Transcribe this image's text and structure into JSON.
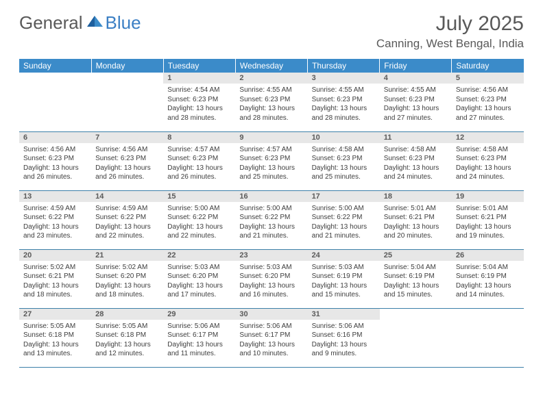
{
  "brand": {
    "general": "General",
    "blue": "Blue"
  },
  "title": "July 2025",
  "location": "Canning, West Bengal, India",
  "colors": {
    "header_bg": "#3b8bc9",
    "header_fg": "#ffffff",
    "daynum_bg": "#e7e7e7",
    "text": "#595959",
    "rule": "#3b7fa8",
    "accent": "#3b7fc4"
  },
  "weekdays": [
    "Sunday",
    "Monday",
    "Tuesday",
    "Wednesday",
    "Thursday",
    "Friday",
    "Saturday"
  ],
  "weeks": [
    [
      null,
      null,
      {
        "n": "1",
        "sr": "4:54 AM",
        "ss": "6:23 PM",
        "dl": "13 hours and 28 minutes."
      },
      {
        "n": "2",
        "sr": "4:55 AM",
        "ss": "6:23 PM",
        "dl": "13 hours and 28 minutes."
      },
      {
        "n": "3",
        "sr": "4:55 AM",
        "ss": "6:23 PM",
        "dl": "13 hours and 28 minutes."
      },
      {
        "n": "4",
        "sr": "4:55 AM",
        "ss": "6:23 PM",
        "dl": "13 hours and 27 minutes."
      },
      {
        "n": "5",
        "sr": "4:56 AM",
        "ss": "6:23 PM",
        "dl": "13 hours and 27 minutes."
      }
    ],
    [
      {
        "n": "6",
        "sr": "4:56 AM",
        "ss": "6:23 PM",
        "dl": "13 hours and 26 minutes."
      },
      {
        "n": "7",
        "sr": "4:56 AM",
        "ss": "6:23 PM",
        "dl": "13 hours and 26 minutes."
      },
      {
        "n": "8",
        "sr": "4:57 AM",
        "ss": "6:23 PM",
        "dl": "13 hours and 26 minutes."
      },
      {
        "n": "9",
        "sr": "4:57 AM",
        "ss": "6:23 PM",
        "dl": "13 hours and 25 minutes."
      },
      {
        "n": "10",
        "sr": "4:58 AM",
        "ss": "6:23 PM",
        "dl": "13 hours and 25 minutes."
      },
      {
        "n": "11",
        "sr": "4:58 AM",
        "ss": "6:23 PM",
        "dl": "13 hours and 24 minutes."
      },
      {
        "n": "12",
        "sr": "4:58 AM",
        "ss": "6:23 PM",
        "dl": "13 hours and 24 minutes."
      }
    ],
    [
      {
        "n": "13",
        "sr": "4:59 AM",
        "ss": "6:22 PM",
        "dl": "13 hours and 23 minutes."
      },
      {
        "n": "14",
        "sr": "4:59 AM",
        "ss": "6:22 PM",
        "dl": "13 hours and 22 minutes."
      },
      {
        "n": "15",
        "sr": "5:00 AM",
        "ss": "6:22 PM",
        "dl": "13 hours and 22 minutes."
      },
      {
        "n": "16",
        "sr": "5:00 AM",
        "ss": "6:22 PM",
        "dl": "13 hours and 21 minutes."
      },
      {
        "n": "17",
        "sr": "5:00 AM",
        "ss": "6:22 PM",
        "dl": "13 hours and 21 minutes."
      },
      {
        "n": "18",
        "sr": "5:01 AM",
        "ss": "6:21 PM",
        "dl": "13 hours and 20 minutes."
      },
      {
        "n": "19",
        "sr": "5:01 AM",
        "ss": "6:21 PM",
        "dl": "13 hours and 19 minutes."
      }
    ],
    [
      {
        "n": "20",
        "sr": "5:02 AM",
        "ss": "6:21 PM",
        "dl": "13 hours and 18 minutes."
      },
      {
        "n": "21",
        "sr": "5:02 AM",
        "ss": "6:20 PM",
        "dl": "13 hours and 18 minutes."
      },
      {
        "n": "22",
        "sr": "5:03 AM",
        "ss": "6:20 PM",
        "dl": "13 hours and 17 minutes."
      },
      {
        "n": "23",
        "sr": "5:03 AM",
        "ss": "6:20 PM",
        "dl": "13 hours and 16 minutes."
      },
      {
        "n": "24",
        "sr": "5:03 AM",
        "ss": "6:19 PM",
        "dl": "13 hours and 15 minutes."
      },
      {
        "n": "25",
        "sr": "5:04 AM",
        "ss": "6:19 PM",
        "dl": "13 hours and 15 minutes."
      },
      {
        "n": "26",
        "sr": "5:04 AM",
        "ss": "6:19 PM",
        "dl": "13 hours and 14 minutes."
      }
    ],
    [
      {
        "n": "27",
        "sr": "5:05 AM",
        "ss": "6:18 PM",
        "dl": "13 hours and 13 minutes."
      },
      {
        "n": "28",
        "sr": "5:05 AM",
        "ss": "6:18 PM",
        "dl": "13 hours and 12 minutes."
      },
      {
        "n": "29",
        "sr": "5:06 AM",
        "ss": "6:17 PM",
        "dl": "13 hours and 11 minutes."
      },
      {
        "n": "30",
        "sr": "5:06 AM",
        "ss": "6:17 PM",
        "dl": "13 hours and 10 minutes."
      },
      {
        "n": "31",
        "sr": "5:06 AM",
        "ss": "6:16 PM",
        "dl": "13 hours and 9 minutes."
      },
      null,
      null
    ]
  ],
  "labels": {
    "sunrise": "Sunrise:",
    "sunset": "Sunset:",
    "daylight": "Daylight:"
  }
}
